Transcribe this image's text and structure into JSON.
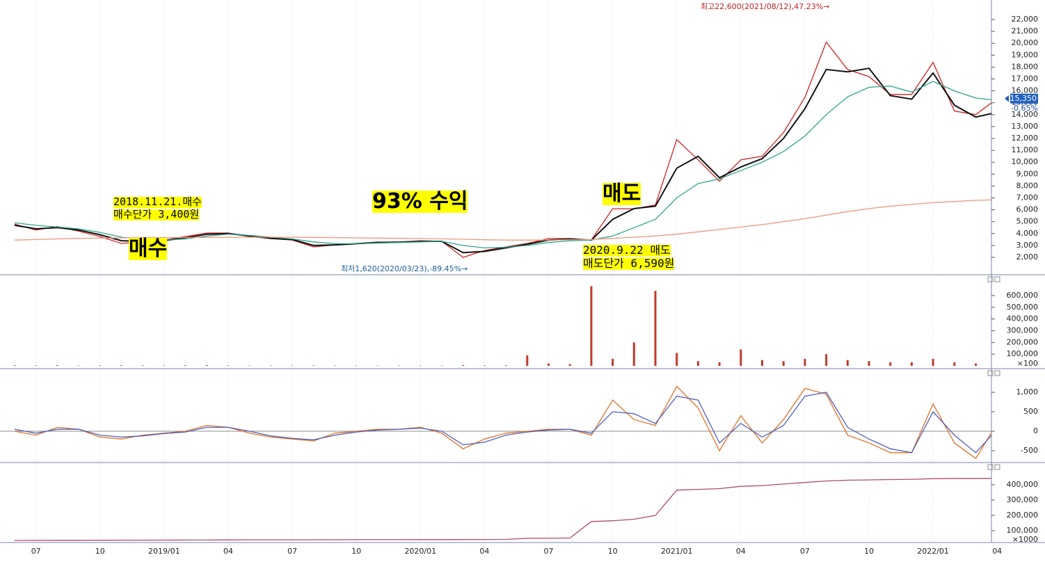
{
  "chart_data": [
    {
      "type": "line",
      "categories": [
        null,
        "07",
        null,
        null,
        "10",
        null,
        null,
        "2019/01",
        null,
        null,
        "04",
        null,
        null,
        "07",
        null,
        null,
        "10",
        null,
        null,
        "2020/01",
        null,
        null,
        "04",
        null,
        null,
        "07",
        null,
        null,
        "10",
        null,
        null,
        "2021/01",
        null,
        null,
        "04",
        null,
        null,
        "07",
        null,
        null,
        "10",
        null,
        null,
        "2022/01",
        null,
        null,
        "04"
      ],
      "series": [
        {
          "color": "#d02020",
          "values": [
            4800,
            4300,
            4600,
            4200,
            3750,
            3170,
            3300,
            3460,
            3750,
            4050,
            4050,
            3750,
            3580,
            3460,
            2880,
            3050,
            3170,
            3290,
            3290,
            3400,
            3350,
            2000,
            2580,
            2880,
            3170,
            3580,
            3580,
            3460,
            6090,
            6090,
            6400,
            11900,
            10200,
            8400,
            10200,
            10500,
            12500,
            15450,
            20100,
            17800,
            17200,
            15700,
            15700,
            18400,
            14300,
            14000,
            15350
          ]
        },
        {
          "color": "#111111",
          "values": [
            4700,
            4400,
            4500,
            4300,
            3900,
            3400,
            3350,
            3400,
            3650,
            3950,
            4000,
            3800,
            3600,
            3500,
            3000,
            3050,
            3150,
            3250,
            3280,
            3350,
            3350,
            2400,
            2500,
            2800,
            3100,
            3450,
            3550,
            3450,
            5200,
            6100,
            6300,
            9500,
            10500,
            8700,
            9600,
            10300,
            12000,
            14500,
            17800,
            17600,
            17900,
            15600,
            15300,
            17500,
            14800,
            13800,
            14200
          ]
        },
        {
          "color": "#2aa58a",
          "values": [
            4900,
            4700,
            4550,
            4400,
            4100,
            3700,
            3500,
            3450,
            3550,
            3800,
            3950,
            3850,
            3700,
            3550,
            3300,
            3150,
            3150,
            3200,
            3250,
            3300,
            3350,
            3000,
            2800,
            2850,
            3000,
            3250,
            3400,
            3450,
            3800,
            4500,
            5200,
            7000,
            8200,
            8600,
            9300,
            10000,
            10900,
            12200,
            14000,
            15500,
            16300,
            16400,
            15900,
            16800,
            16000,
            15400,
            15200
          ]
        },
        {
          "color": "#f0957a",
          "values": [
            3450,
            3500,
            3550,
            3600,
            3620,
            3640,
            3650,
            3660,
            3670,
            3680,
            3690,
            3700,
            3700,
            3690,
            3680,
            3660,
            3640,
            3620,
            3600,
            3580,
            3560,
            3520,
            3480,
            3460,
            3450,
            3460,
            3480,
            3500,
            3600,
            3700,
            3800,
            3950,
            4150,
            4350,
            4550,
            4750,
            5000,
            5250,
            5550,
            5850,
            6100,
            6300,
            6450,
            6600,
            6700,
            6800,
            6850
          ]
        }
      ],
      "ylim": [
        540,
        23640
      ],
      "yticks": [
        {
          "value": 2000,
          "label": "2,000"
        },
        {
          "value": 3000,
          "label": "3,000"
        },
        {
          "value": 4000,
          "label": "4,000"
        },
        {
          "value": 5000,
          "label": "5,000"
        },
        {
          "value": 6000,
          "label": "6,000"
        },
        {
          "value": 7000,
          "label": "7,000"
        },
        {
          "value": 8000,
          "label": "8,000"
        },
        {
          "value": 9000,
          "label": "9,000"
        },
        {
          "value": 10000,
          "label": "10,000"
        },
        {
          "value": 11000,
          "label": "11,000"
        },
        {
          "value": 12000,
          "label": "12,000"
        },
        {
          "value": 13000,
          "label": "13,000"
        },
        {
          "value": 14000,
          "label": "14,000"
        },
        {
          "value": 15000,
          "label": "15,000"
        },
        {
          "value": 16000,
          "label": "16,000"
        },
        {
          "value": 17000,
          "label": "17,000"
        },
        {
          "value": 18000,
          "label": "18,000"
        },
        {
          "value": 19000,
          "label": "19,000"
        },
        {
          "value": 20000,
          "label": "20,000"
        },
        {
          "value": 21000,
          "label": "21,000"
        },
        {
          "value": 22000,
          "label": "22,000"
        }
      ],
      "last_price": {
        "value": 15350,
        "label": "15,350"
      },
      "change_label": "-0.65%",
      "annotations": [
        "최고22,600(2021/08/12),47.23%→",
        "최저1,620(2020/03/23),-89.45%→",
        "2018.11.21.매수",
        "매수단가 3,400원",
        "93% 수익",
        "매수",
        "매도",
        "2020.9.22 매도",
        "매도단가 6,590원"
      ]
    },
    {
      "type": "bar",
      "color": "#c0392b",
      "values": [
        5000,
        4000,
        6000,
        3000,
        4000,
        5000,
        4000,
        3000,
        5000,
        6000,
        4000,
        3000,
        3000,
        3000,
        4000,
        3000,
        3000,
        3000,
        3000,
        3000,
        3000,
        6000,
        4000,
        5000,
        90000,
        20000,
        15000,
        680000,
        60000,
        200000,
        640000,
        110000,
        40000,
        30000,
        140000,
        50000,
        40000,
        60000,
        100000,
        50000,
        40000,
        30000,
        30000,
        60000,
        30000,
        20000,
        10000
      ],
      "ylim": [
        0,
        760000
      ],
      "yticks": [
        {
          "value": 100000,
          "label": "100,000"
        },
        {
          "value": 200000,
          "label": "200,000"
        },
        {
          "value": 300000,
          "label": "300,000"
        },
        {
          "value": 400000,
          "label": "400,000"
        },
        {
          "value": 500000,
          "label": "500,000"
        },
        {
          "value": 600000,
          "label": "600,000"
        }
      ],
      "unit": "×100"
    },
    {
      "type": "line",
      "series": [
        {
          "color": "#e07020",
          "values": [
            0,
            -100,
            100,
            50,
            -150,
            -200,
            -100,
            -50,
            0,
            150,
            100,
            -50,
            -150,
            -200,
            -250,
            -50,
            0,
            50,
            50,
            100,
            -50,
            -450,
            -200,
            -50,
            0,
            50,
            50,
            -100,
            800,
            300,
            150,
            1150,
            600,
            -500,
            400,
            -300,
            300,
            1100,
            950,
            -100,
            -300,
            -550,
            -550,
            700,
            -300,
            -700,
            200
          ]
        },
        {
          "color": "#5060c0",
          "values": [
            50,
            -50,
            50,
            50,
            -100,
            -150,
            -120,
            -60,
            -20,
            100,
            100,
            0,
            -120,
            -180,
            -220,
            -100,
            -20,
            30,
            50,
            80,
            0,
            -350,
            -280,
            -100,
            -20,
            30,
            50,
            -50,
            500,
            450,
            200,
            900,
            800,
            -300,
            200,
            -150,
            150,
            900,
            1000,
            100,
            -200,
            -450,
            -550,
            500,
            -100,
            -550,
            50
          ]
        }
      ],
      "ylim": [
        -768,
        1554
      ],
      "yticks": [
        {
          "value": 1000,
          "label": "1,000"
        },
        500,
        0,
        -500
      ],
      "zero_line": true
    },
    {
      "type": "line",
      "series": [
        {
          "color": "#b04a6a",
          "values": [
            36000,
            36500,
            37000,
            37000,
            37500,
            38000,
            38000,
            38500,
            39000,
            39000,
            39500,
            40000,
            40000,
            40000,
            40500,
            40500,
            41000,
            41000,
            41000,
            41500,
            41500,
            42000,
            42500,
            43000,
            50000,
            50000,
            52000,
            160000,
            165000,
            175000,
            200000,
            365000,
            370000,
            375000,
            390000,
            395000,
            405000,
            415000,
            425000,
            430000,
            432000,
            434000,
            436000,
            440000,
            442000,
            442000,
            442000
          ]
        }
      ],
      "ylim": [
        27000,
        532000
      ],
      "yticks": [
        {
          "value": 100000,
          "label": "100,000"
        },
        {
          "value": 200000,
          "label": "200,000"
        },
        {
          "value": 300000,
          "label": "300,000"
        },
        {
          "value": 400000,
          "label": "400,000"
        }
      ],
      "unit": "×1000"
    }
  ]
}
